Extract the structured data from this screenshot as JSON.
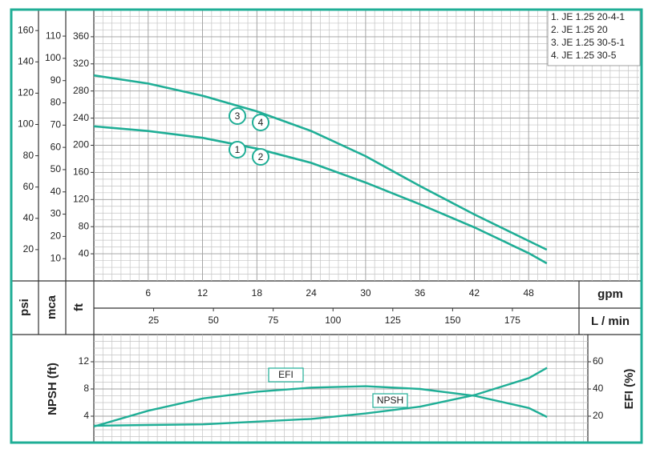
{
  "chart_data": [
    {
      "type": "line",
      "y_label": "ft",
      "ylim": [
        0,
        400
      ],
      "yticks": [
        40,
        80,
        120,
        160,
        200,
        240,
        280,
        320,
        360
      ],
      "y_axes": [
        {
          "label": "psi",
          "lim": [
            0,
            173.4
          ],
          "ticks": [
            20,
            40,
            60,
            80,
            100,
            120,
            140,
            160
          ]
        },
        {
          "label": "mca",
          "lim": [
            0,
            121.9
          ],
          "ticks": [
            10,
            20,
            30,
            40,
            50,
            60,
            70,
            80,
            90,
            100,
            110
          ]
        }
      ],
      "x_label": "gpm",
      "xlim": [
        0,
        60.2
      ],
      "xticks": [
        6,
        12,
        18,
        24,
        30,
        36,
        42,
        48
      ],
      "x2_label": "L / min",
      "x2lim": [
        0,
        228
      ],
      "x2ticks": [
        25,
        50,
        75,
        100,
        125,
        150,
        175
      ],
      "grid": true,
      "color": "#1fae96",
      "x": [
        0,
        6,
        12,
        18,
        24,
        30,
        36,
        42,
        48,
        50
      ],
      "series": [
        {
          "labels": [
            "1",
            "2"
          ],
          "values": [
            228,
            221,
            211,
            195,
            174,
            145,
            113,
            79,
            41,
            26
          ]
        },
        {
          "labels": [
            "3",
            "4"
          ],
          "values": [
            303,
            291,
            273,
            250,
            221,
            184,
            140,
            98,
            59,
            46
          ]
        }
      ],
      "legend": [
        "1. JE 1.25 20-4-1",
        "2. JE 1.25 20",
        "3. JE 1.25 30-5-1",
        "4. JE 1.25 30-5"
      ],
      "legend_loc": "upper right"
    },
    {
      "type": "line",
      "y_label": "NPSH (ft)",
      "ylim": [
        0,
        16
      ],
      "yticks": [
        4,
        8,
        12
      ],
      "y2_label": "EFI (%)",
      "y2lim": [
        0,
        80
      ],
      "y2ticks": [
        20,
        40,
        60
      ],
      "xlim": [
        0,
        54.5
      ],
      "grid": true,
      "color": "#1fae96",
      "x": [
        0,
        6,
        12,
        18,
        24,
        30,
        36,
        42,
        48,
        50
      ],
      "series": [
        {
          "name": "NPSH",
          "values": [
            2.6,
            2.7,
            2.8,
            3.2,
            3.6,
            4.4,
            5.4,
            7.1,
            9.6,
            11.1
          ]
        },
        {
          "name": "EFI",
          "axis": "y2",
          "values": [
            12.4,
            24,
            33,
            38,
            41,
            42,
            40,
            35,
            26,
            19.4
          ]
        }
      ]
    }
  ]
}
